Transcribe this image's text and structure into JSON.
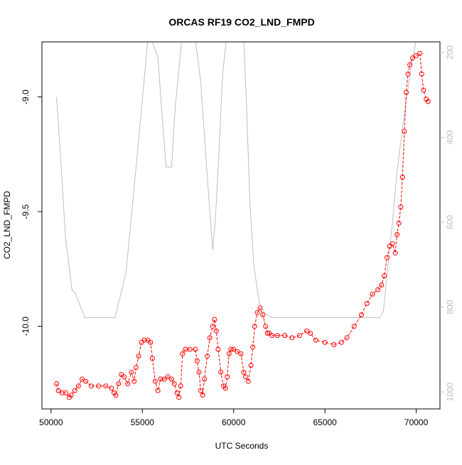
{
  "chart_data": {
    "type": "scatter",
    "title": "ORCAS RF19 CO2_LND_FMPD",
    "xlabel": "UTC Seconds",
    "ylabel": "CO2_LND_FMPD",
    "xlim": [
      49500,
      71300
    ],
    "ylim": [
      -10.36,
      -8.76
    ],
    "y2lim": [
      175,
      1040
    ],
    "y2_reversed": true,
    "x_ticks": [
      50000,
      55000,
      60000,
      65000,
      70000
    ],
    "y_ticks": [
      -10.0,
      -9.5,
      -9.0
    ],
    "y_tick_labels": [
      "-10.0",
      "-9.5",
      "-9.0"
    ],
    "y2_ticks": [
      200,
      400,
      600,
      800,
      1000
    ],
    "grid": false,
    "colors": {
      "main": "#ff0000",
      "secondary": "#bebebe",
      "axis": "#000000"
    },
    "series": [
      {
        "role": "CO2_LND_FMPD",
        "style": "points-and-line",
        "axis": "left",
        "x": [
          50300,
          50400,
          50600,
          50800,
          51000,
          51100,
          51300,
          51500,
          51700,
          51900,
          52200,
          52600,
          53000,
          53300,
          53450,
          53550,
          53700,
          53850,
          54000,
          54200,
          54400,
          54550,
          54650,
          54800,
          54950,
          55100,
          55300,
          55450,
          55550,
          55700,
          55850,
          56000,
          56200,
          56400,
          56600,
          56750,
          56900,
          57000,
          57100,
          57200,
          57350,
          57600,
          57900,
          58000,
          58100,
          58200,
          58300,
          58400,
          58550,
          58700,
          58850,
          58950,
          59050,
          59150,
          59300,
          59450,
          59550,
          59650,
          59750,
          59850,
          60000,
          60200,
          60400,
          60550,
          60650,
          60800,
          60950,
          61050,
          61150,
          61300,
          61450,
          61600,
          61750,
          61850,
          61950,
          62100,
          62400,
          62800,
          63200,
          63600,
          64000,
          64200,
          64500,
          65000,
          65500,
          65900,
          66200,
          66600,
          67000,
          67300,
          67600,
          67900,
          68100,
          68250,
          68400,
          68550,
          68700,
          68850,
          68950,
          69050,
          69150,
          69250,
          69350,
          69450,
          69550,
          69650,
          69800,
          70000,
          70200,
          70300,
          70400,
          70550,
          70650
        ],
        "y": [
          -10.25,
          -10.28,
          -10.29,
          -10.29,
          -10.31,
          -10.3,
          -10.28,
          -10.26,
          -10.23,
          -10.24,
          -10.26,
          -10.26,
          -10.26,
          -10.27,
          -10.29,
          -10.3,
          -10.25,
          -10.21,
          -10.22,
          -10.25,
          -10.2,
          -10.24,
          -10.18,
          -10.13,
          -10.07,
          -10.06,
          -10.06,
          -10.07,
          -10.14,
          -10.24,
          -10.28,
          -10.23,
          -10.23,
          -10.22,
          -10.23,
          -10.25,
          -10.29,
          -10.31,
          -10.26,
          -10.12,
          -10.1,
          -10.1,
          -10.1,
          -10.15,
          -10.2,
          -10.28,
          -10.3,
          -10.23,
          -10.13,
          -10.05,
          -10.0,
          -9.97,
          -10.02,
          -10.1,
          -10.2,
          -10.26,
          -10.27,
          -10.22,
          -10.12,
          -10.1,
          -10.1,
          -10.11,
          -10.12,
          -10.2,
          -10.22,
          -10.24,
          -10.17,
          -10.09,
          -10.0,
          -9.94,
          -9.92,
          -9.95,
          -10.0,
          -10.03,
          -10.03,
          -10.04,
          -10.04,
          -10.04,
          -10.05,
          -10.04,
          -10.02,
          -10.03,
          -10.06,
          -10.07,
          -10.08,
          -10.07,
          -10.05,
          -10.0,
          -9.95,
          -9.9,
          -9.86,
          -9.84,
          -9.82,
          -9.78,
          -9.7,
          -9.65,
          -9.64,
          -9.68,
          -9.6,
          -9.55,
          -9.48,
          -9.35,
          -9.15,
          -8.98,
          -8.9,
          -8.86,
          -8.83,
          -8.82,
          -8.81,
          -8.9,
          -8.97,
          -9.01,
          -9.02
        ]
      },
      {
        "role": "secondary",
        "style": "line",
        "axis": "right",
        "x": [
          50300,
          50550,
          50800,
          51150,
          51300,
          51850,
          53500,
          54100,
          54700,
          55300,
          55500,
          55850,
          56100,
          56300,
          56600,
          56800,
          57200,
          57500,
          57900,
          58200,
          58600,
          58850,
          59000,
          59200,
          59400,
          59600,
          59900,
          60300,
          60550,
          60700,
          60900,
          61100,
          61400,
          61700,
          62100,
          64000,
          66000,
          68000,
          68200,
          68450,
          68700,
          68950,
          69300,
          69700,
          70000,
          70150
        ],
        "y": [
          305,
          470,
          640,
          760,
          765,
          825,
          825,
          720,
          450,
          170,
          170,
          210,
          360,
          470,
          470,
          330,
          150,
          150,
          170,
          270,
          520,
          665,
          595,
          430,
          250,
          170,
          150,
          150,
          170,
          320,
          560,
          700,
          790,
          815,
          825,
          825,
          825,
          825,
          810,
          700,
          600,
          480,
          360,
          240,
          170,
          170
        ]
      }
    ]
  }
}
